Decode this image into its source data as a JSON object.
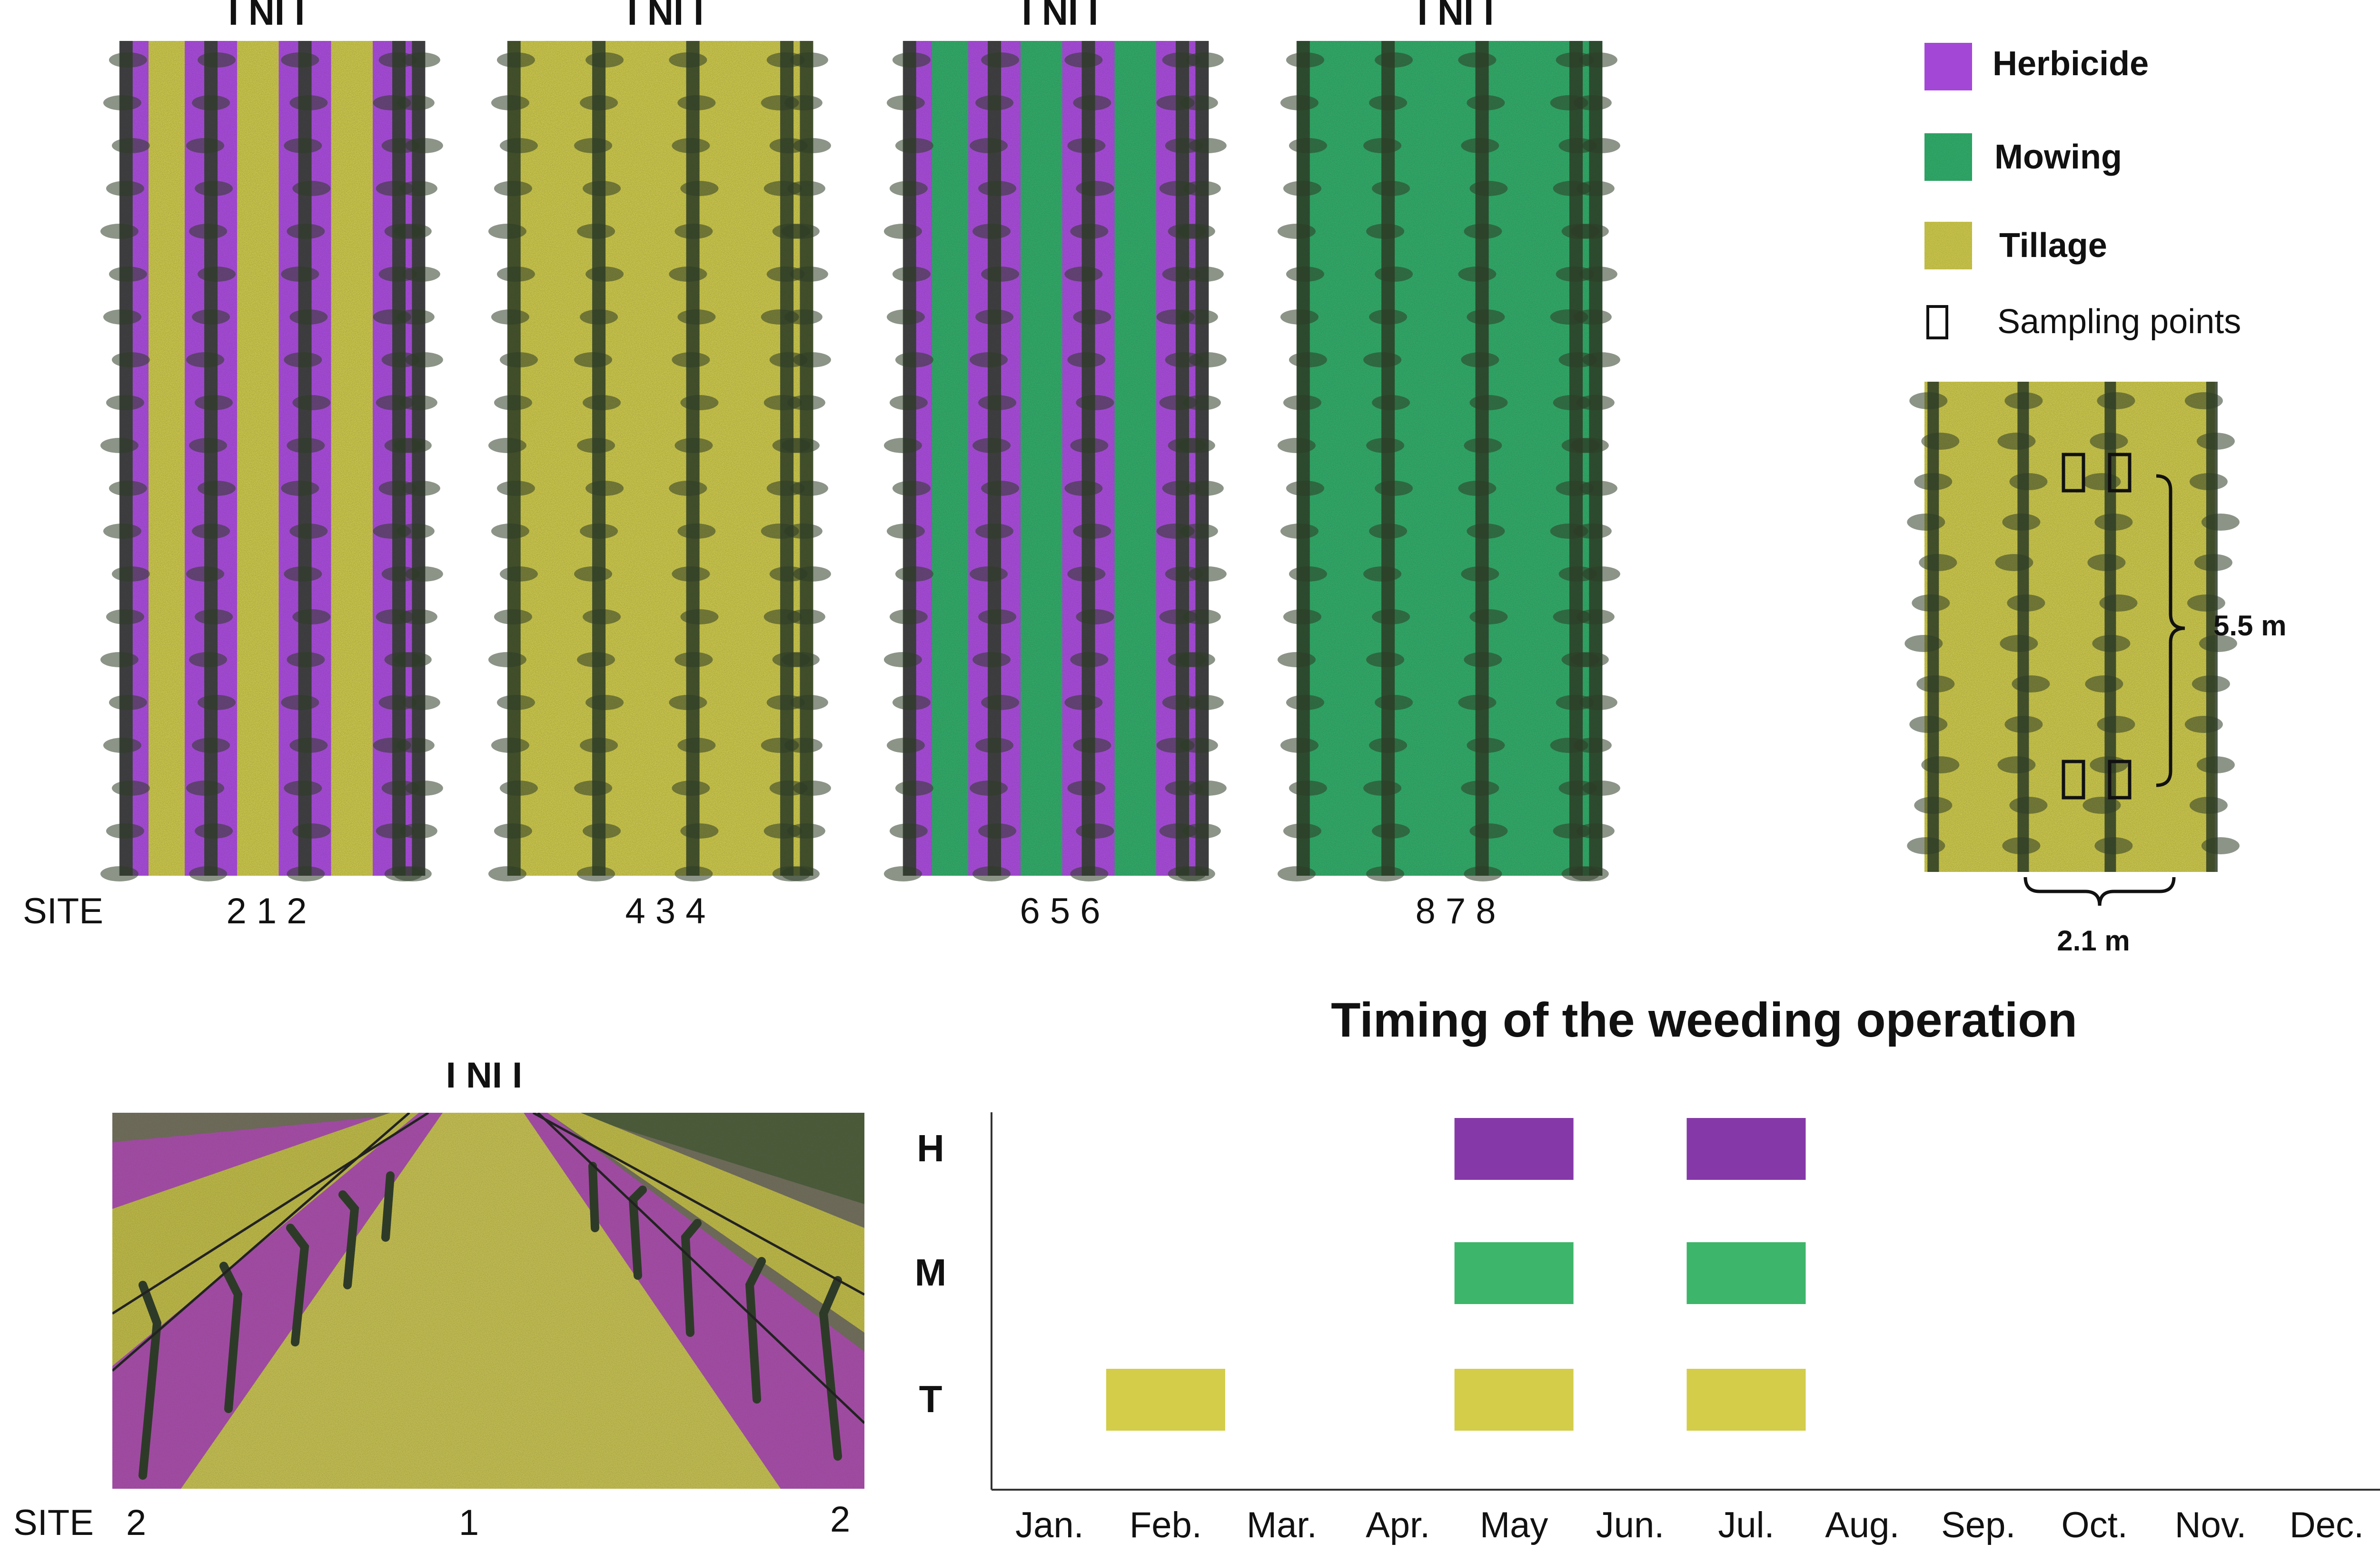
{
  "diagram": {
    "row_labels": [
      "I NI I",
      "I NI I",
      "I NI I",
      "I NI I",
      "I NI I"
    ],
    "site_word": "SITE",
    "site_numbers": [
      "2  1  2",
      "4  3  4",
      "6  5  6",
      "8  7  8"
    ],
    "photo_sites": [
      "2",
      "1",
      "2"
    ],
    "panels": [
      {
        "interrow": "tillage",
        "row_band": "herbicide"
      },
      {
        "interrow": "tillage",
        "row_band": "tillage"
      },
      {
        "interrow": "mowing",
        "row_band": "herbicide"
      },
      {
        "interrow": "mowing",
        "row_band": "mowing"
      }
    ]
  },
  "legend": {
    "items": [
      {
        "label": "Herbicide",
        "color": "#a348d6"
      },
      {
        "label": "Mowing",
        "color": "#2fa566"
      },
      {
        "label": "Tillage",
        "color": "#c4c04a"
      },
      {
        "label": "Sampling points",
        "icon": "rectangle-outline-icon"
      }
    ]
  },
  "sampling": {
    "vertical_distance": "5.5 m",
    "horizontal_distance": "2.1 m"
  },
  "colors": {
    "herbicide": "#a348d6",
    "mowing": "#2fa566",
    "tillage": "#c4c04a",
    "herbicide_bar": "#8539a8",
    "mowing_bar": "#3db56a",
    "tillage_bar": "#d3cd4a"
  },
  "chart_data": {
    "type": "bar",
    "title": "Timing of the weeding operation",
    "categories": [
      "Jan.",
      "Feb.",
      "Mar.",
      "Apr.",
      "May",
      "Jun.",
      "Jul.",
      "Aug.",
      "Sep.",
      "Oct.",
      "Nov.",
      "Dec."
    ],
    "rows": [
      {
        "label": "H",
        "color": "#8539a8",
        "months": [
          "May",
          "Jul."
        ]
      },
      {
        "label": "M",
        "color": "#3db56a",
        "months": [
          "May",
          "Jul."
        ]
      },
      {
        "label": "T",
        "color": "#d3cd4a",
        "months": [
          "Feb.",
          "May",
          "Jul."
        ]
      }
    ],
    "grid": false
  }
}
